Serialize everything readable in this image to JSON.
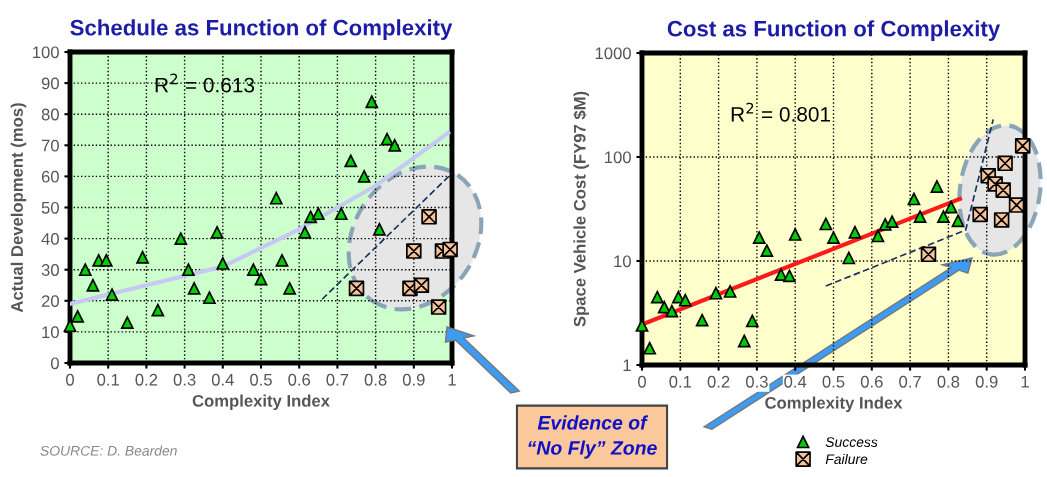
{
  "chart_data": [
    {
      "type": "scatter",
      "title": "Schedule as Function of Complexity",
      "xlabel": "Complexity Index",
      "ylabel": "Actual Development (mos)",
      "xlim": [
        0,
        1
      ],
      "ylim": [
        0,
        100
      ],
      "xticks": [
        0,
        0.1,
        0.2,
        0.3,
        0.4,
        0.5,
        0.6,
        0.7,
        0.8,
        0.9,
        1
      ],
      "yticks": [
        0,
        10,
        20,
        30,
        40,
        50,
        60,
        70,
        80,
        90,
        100
      ],
      "grid": true,
      "annotations": [
        "R$^{2}$ = 0.613",
        "SOURCE: D. Bearden"
      ],
      "series": [
        {
          "type": "scatter",
          "marker": "triangle",
          "color": "#00cc00",
          "x": [
            0,
            0.02,
            0.04,
            0.06,
            0.075,
            0.095,
            0.11,
            0.15,
            0.19,
            0.23,
            0.29,
            0.31,
            0.325,
            0.365,
            0.385,
            0.4,
            0.48,
            0.5,
            0.54,
            0.555,
            0.575,
            0.615,
            0.63,
            0.65,
            0.71,
            0.735,
            0.77,
            0.79,
            0.81,
            0.83,
            0.85
          ],
          "values": [
            12,
            15,
            30,
            25,
            33,
            33,
            22,
            13,
            34,
            17,
            40,
            30,
            24,
            21,
            42,
            32,
            30,
            27,
            53,
            33,
            24,
            42,
            47,
            48,
            48,
            65,
            60,
            84,
            43,
            72,
            70
          ]
        },
        {
          "type": "scatter",
          "marker": "cross",
          "color": "#f6c39a",
          "x": [
            0.75,
            0.89,
            0.9,
            0.92,
            0.94,
            0.965,
            0.975,
            0.995
          ],
          "values": [
            24,
            24,
            36,
            25,
            47,
            18,
            36,
            36.5
          ]
        },
        {
          "type": "line",
          "marker": "none",
          "line_style": "solid",
          "color": "#c8c8f4",
          "x": [
            0,
            0.2,
            0.4,
            0.6,
            0.8,
            0.99
          ],
          "values": [
            19,
            25,
            31,
            43,
            57,
            74
          ]
        },
        {
          "type": "line",
          "marker": "none",
          "line_style": "dashed",
          "color": "#1f2f5f",
          "x": [
            0.66,
            1
          ],
          "values": [
            20.5,
            61
          ]
        }
      ]
    },
    {
      "type": "scatter",
      "title": "Cost as Function of Complexity",
      "xlabel": "Complexity Index",
      "ylabel": "Space Vehicle Cost (FY97 $M)",
      "log": "y",
      "xlim": [
        0,
        1
      ],
      "ylim": [
        1,
        1000
      ],
      "xticks": [
        0,
        0.1,
        0.2,
        0.3,
        0.4,
        0.5,
        0.6,
        0.7,
        0.8,
        0.9,
        1
      ],
      "yticks": [
        1,
        10,
        100,
        1000
      ],
      "grid": true,
      "legend": "bottom",
      "annotations": [
        "R$^{2}$ = 0.801",
        "Evidence of\n“No Fly” Zone"
      ],
      "series": [
        {
          "name": "Success",
          "type": "scatter",
          "marker": "triangle",
          "color": "#00cc00",
          "x": [
            0,
            0.02,
            0.04,
            0.058,
            0.078,
            0.095,
            0.113,
            0.157,
            0.193,
            0.23,
            0.267,
            0.288,
            0.306,
            0.326,
            0.363,
            0.385,
            0.4,
            0.48,
            0.5,
            0.54,
            0.556,
            0.616,
            0.635,
            0.653,
            0.71,
            0.726,
            0.77,
            0.787,
            0.807,
            0.825
          ],
          "values": [
            2.4,
            1.45,
            4.5,
            3.6,
            3.3,
            4.5,
            4.2,
            2.7,
            4.9,
            5.1,
            1.7,
            2.65,
            16.8,
            12.6,
            7.4,
            7.2,
            18,
            22.7,
            16.8,
            10.7,
            18.9,
            17.4,
            22.5,
            23.9,
            39.5,
            26.7,
            52,
            26.7,
            33,
            24.3
          ]
        },
        {
          "name": "Failure",
          "type": "scatter",
          "marker": "cross",
          "color": "#f6c39a",
          "x": [
            0.748,
            0.883,
            0.904,
            0.922,
            0.939,
            0.943,
            0.948,
            0.978,
            0.994
          ],
          "values": [
            11.6,
            28,
            66,
            55,
            24.8,
            48,
            87,
            34.5,
            128
          ]
        },
        {
          "type": "line",
          "marker": "none",
          "line_style": "solid",
          "color": "#ff1a1a",
          "x": [
            0,
            0.83
          ],
          "values": [
            2.45,
            39.6
          ]
        },
        {
          "type": "line",
          "marker": "none",
          "line_style": "dashed",
          "color": "#1f2f5f",
          "x": [
            0.48,
            0.845,
            0.917
          ],
          "values": [
            5.75,
            19.8,
            230
          ]
        }
      ]
    }
  ]
}
